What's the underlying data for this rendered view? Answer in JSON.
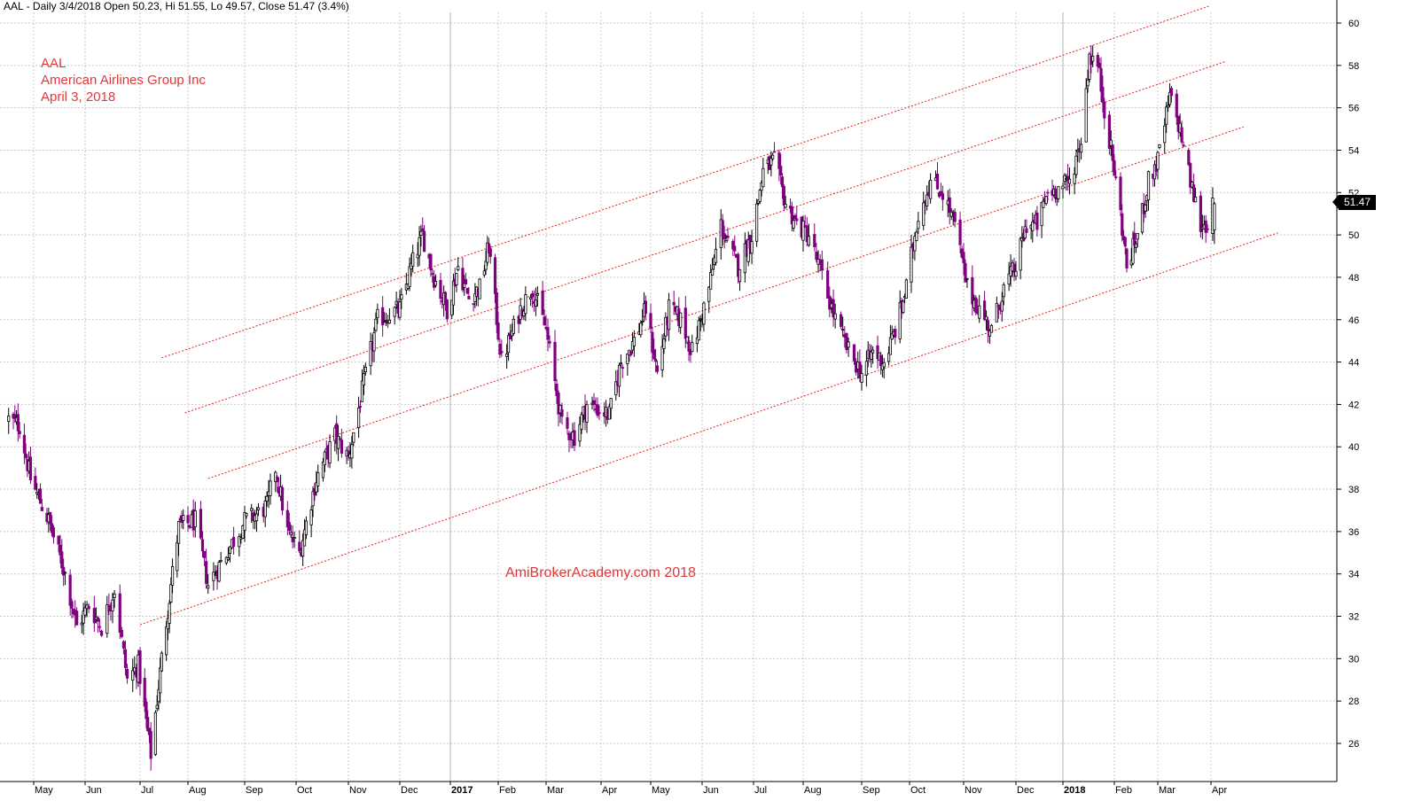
{
  "header": {
    "text": "AAL - Daily 3/4/2018 Open 50.23, Hi 51.55, Lo 49.57, Close 51.47 (3.4%)"
  },
  "annotations": {
    "ticker": "AAL",
    "company": "American Airlines Group Inc",
    "date": "April 3, 2018",
    "watermark": "AmiBrokerAcademy.com  2018"
  },
  "last_price_label": "51.47",
  "colors": {
    "up_candle": "#000000",
    "down_candle": "#800080",
    "channel_line": "#e8201c",
    "annotation_text": "#e0383a",
    "grid": "#c8c8c8"
  },
  "chart_data": {
    "type": "candlestick",
    "title": "",
    "ylim": [
      24.5,
      61.8
    ],
    "y_ticks": [
      26,
      28,
      30,
      32,
      34,
      36,
      38,
      40,
      42,
      44,
      46,
      48,
      50,
      52,
      54,
      56,
      58,
      60
    ],
    "x_tick_labels": [
      "May",
      "Jun",
      "Jul",
      "Aug",
      "Sep",
      "Oct",
      "Nov",
      "Dec",
      "2017",
      "Feb",
      "Mar",
      "Apr",
      "May",
      "Jun",
      "Jul",
      "Aug",
      "Sep",
      "Oct",
      "Nov",
      "Dec",
      "2018",
      "Feb",
      "Mar",
      "Apr"
    ],
    "x_tick_dates": [
      "2016-05-01",
      "2016-06-01",
      "2016-07-01",
      "2016-08-01",
      "2016-09-01",
      "2016-10-01",
      "2016-11-01",
      "2016-12-01",
      "2017-01-01",
      "2017-02-01",
      "2017-03-01",
      "2017-04-01",
      "2017-05-01",
      "2017-06-01",
      "2017-07-01",
      "2017-08-01",
      "2017-09-01",
      "2017-10-01",
      "2017-11-01",
      "2017-12-01",
      "2018-01-01",
      "2018-02-01",
      "2018-03-01",
      "2018-04-01"
    ],
    "bold_tick_labels": [
      "2017",
      "2018"
    ],
    "date_range": [
      "2016-04-15",
      "2018-04-03"
    ],
    "price_path": [
      [
        "2016-04-15",
        41.3
      ],
      [
        "2016-04-22",
        41.0
      ],
      [
        "2016-04-29",
        38.5
      ],
      [
        "2016-05-10",
        36.5
      ],
      [
        "2016-05-20",
        34.0
      ],
      [
        "2016-05-27",
        31.5
      ],
      [
        "2016-06-03",
        32.5
      ],
      [
        "2016-06-10",
        31.5
      ],
      [
        "2016-06-17",
        33.3
      ],
      [
        "2016-06-24",
        29.0
      ],
      [
        "2016-06-30",
        29.7
      ],
      [
        "2016-07-05",
        27.0
      ],
      [
        "2016-07-08",
        25.5
      ],
      [
        "2016-07-15",
        30.0
      ],
      [
        "2016-07-21",
        33.5
      ],
      [
        "2016-07-26",
        36.2
      ],
      [
        "2016-08-05",
        36.5
      ],
      [
        "2016-08-12",
        33.5
      ],
      [
        "2016-08-22",
        35.0
      ],
      [
        "2016-09-01",
        36.5
      ],
      [
        "2016-09-08",
        36.8
      ],
      [
        "2016-09-14",
        37.2
      ],
      [
        "2016-09-19",
        39.0
      ],
      [
        "2016-09-26",
        36.0
      ],
      [
        "2016-10-03",
        35.0
      ],
      [
        "2016-10-13",
        38.5
      ],
      [
        "2016-10-24",
        40.5
      ],
      [
        "2016-11-01",
        39.5
      ],
      [
        "2016-11-10",
        43.0
      ],
      [
        "2016-11-18",
        46.0
      ],
      [
        "2016-12-01",
        46.5
      ],
      [
        "2016-12-08",
        48.5
      ],
      [
        "2016-12-15",
        50.0
      ],
      [
        "2016-12-22",
        48.0
      ],
      [
        "2016-12-30",
        46.5
      ],
      [
        "2017-01-06",
        48.5
      ],
      [
        "2017-01-13",
        47.0
      ],
      [
        "2017-01-20",
        47.5
      ],
      [
        "2017-01-26",
        49.5
      ],
      [
        "2017-02-03",
        44.0
      ],
      [
        "2017-02-14",
        46.5
      ],
      [
        "2017-02-21",
        47.5
      ],
      [
        "2017-03-01",
        45.5
      ],
      [
        "2017-03-10",
        41.0
      ],
      [
        "2017-03-17",
        40.5
      ],
      [
        "2017-03-24",
        42.0
      ],
      [
        "2017-04-06",
        41.5
      ],
      [
        "2017-04-13",
        44.0
      ],
      [
        "2017-04-21",
        45.0
      ],
      [
        "2017-04-28",
        46.5
      ],
      [
        "2017-05-05",
        43.5
      ],
      [
        "2017-05-12",
        46.5
      ],
      [
        "2017-05-19",
        46.0
      ],
      [
        "2017-05-26",
        44.5
      ],
      [
        "2017-06-05",
        47.5
      ],
      [
        "2017-06-12",
        50.5
      ],
      [
        "2017-06-16",
        49.5
      ],
      [
        "2017-06-22",
        48.5
      ],
      [
        "2017-06-30",
        50.0
      ],
      [
        "2017-07-07",
        53.0
      ],
      [
        "2017-07-14",
        53.5
      ],
      [
        "2017-07-21",
        51.5
      ],
      [
        "2017-07-28",
        50.5
      ],
      [
        "2017-08-04",
        50.0
      ],
      [
        "2017-08-11",
        48.0
      ],
      [
        "2017-08-18",
        46.0
      ],
      [
        "2017-08-25",
        44.5
      ],
      [
        "2017-09-01",
        43.5
      ],
      [
        "2017-09-08",
        44.5
      ],
      [
        "2017-09-15",
        44.0
      ],
      [
        "2017-09-22",
        45.5
      ],
      [
        "2017-09-29",
        47.5
      ],
      [
        "2017-10-06",
        51.0
      ],
      [
        "2017-10-13",
        52.5
      ],
      [
        "2017-10-20",
        52.0
      ],
      [
        "2017-10-27",
        50.5
      ],
      [
        "2017-11-03",
        47.5
      ],
      [
        "2017-11-10",
        46.5
      ],
      [
        "2017-11-17",
        45.5
      ],
      [
        "2017-11-24",
        47.5
      ],
      [
        "2017-12-01",
        48.5
      ],
      [
        "2017-12-08",
        50.5
      ],
      [
        "2017-12-15",
        50.5
      ],
      [
        "2017-12-22",
        52.0
      ],
      [
        "2017-12-29",
        52.2
      ],
      [
        "2018-01-05",
        52.5
      ],
      [
        "2018-01-12",
        54.5
      ],
      [
        "2018-01-17",
        58.5
      ],
      [
        "2018-01-22",
        58.0
      ],
      [
        "2018-01-29",
        54.5
      ],
      [
        "2018-02-05",
        51.0
      ],
      [
        "2018-02-09",
        48.5
      ],
      [
        "2018-02-16",
        50.0
      ],
      [
        "2018-02-23",
        52.5
      ],
      [
        "2018-03-01",
        53.5
      ],
      [
        "2018-03-08",
        56.5
      ],
      [
        "2018-03-14",
        55.0
      ],
      [
        "2018-03-20",
        52.5
      ],
      [
        "2018-03-26",
        50.5
      ],
      [
        "2018-03-29",
        50.5
      ],
      [
        "2018-04-03",
        51.47
      ]
    ],
    "last_bar": {
      "open": 50.23,
      "high": 51.55,
      "low": 49.57,
      "close": 51.47
    },
    "trend_lines": [
      {
        "name": "channel-1",
        "start": [
          "2016-07-15",
          44.2
        ],
        "end": [
          "2018-03-31",
          60.8
        ]
      },
      {
        "name": "channel-2",
        "start": [
          "2016-07-30",
          41.6
        ],
        "end": [
          "2018-04-10",
          58.2
        ]
      },
      {
        "name": "channel-3",
        "start": [
          "2016-08-12",
          38.5
        ],
        "end": [
          "2018-04-20",
          55.1
        ]
      },
      {
        "name": "channel-4",
        "start": [
          "2016-07-01",
          31.6
        ],
        "end": [
          "2018-05-10",
          50.1
        ]
      }
    ],
    "grid": true,
    "legend": "none"
  }
}
